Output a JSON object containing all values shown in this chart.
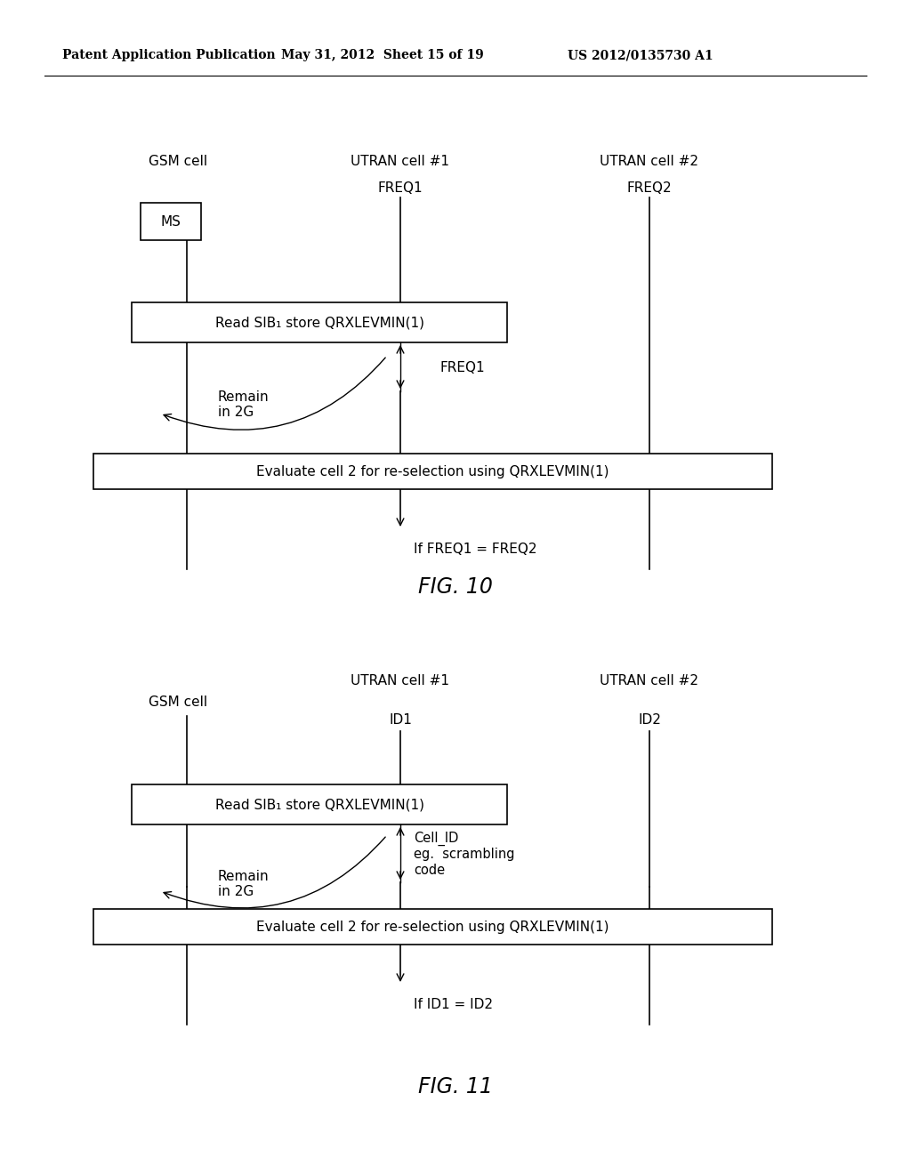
{
  "bg_color": "#ffffff",
  "header_left": "Patent Application Publication",
  "header_mid": "May 31, 2012  Sheet 15 of 19",
  "header_right": "US 2012/0135730 A1",
  "fig10": {
    "title": "FIG. 10",
    "col1_label": "GSM cell",
    "col2_label": "UTRAN cell #1",
    "col3_label": "UTRAN cell #2",
    "col2_sublabel": "FREQ1",
    "col3_sublabel": "FREQ2",
    "ms_box": "MS",
    "box1_text": "Read SIB₁ store QRXLEVMIN(1)",
    "box2_text": "Evaluate cell 2 for re-selection using QRXLEVMIN(1)",
    "arrow_label": "FREQ1",
    "remain_label": "Remain\nin 2G",
    "condition_text": "If FREQ1 = FREQ2"
  },
  "fig11": {
    "title": "FIG. 11",
    "col1_label": "GSM cell",
    "col2_label": "UTRAN cell #1",
    "col3_label": "UTRAN cell #2",
    "col2_sublabel": "ID1",
    "col3_sublabel": "ID2",
    "box1_text": "Read SIB₁ store QRXLEVMIN(1)",
    "box2_text": "Evaluate cell 2 for re-selection using QRXLEVMIN(1)",
    "arrow_label": "Cell_ID\neg.  scrambling\ncode",
    "remain_label": "Remain\nin 2G",
    "condition_text": "If ID1 = ID2"
  }
}
